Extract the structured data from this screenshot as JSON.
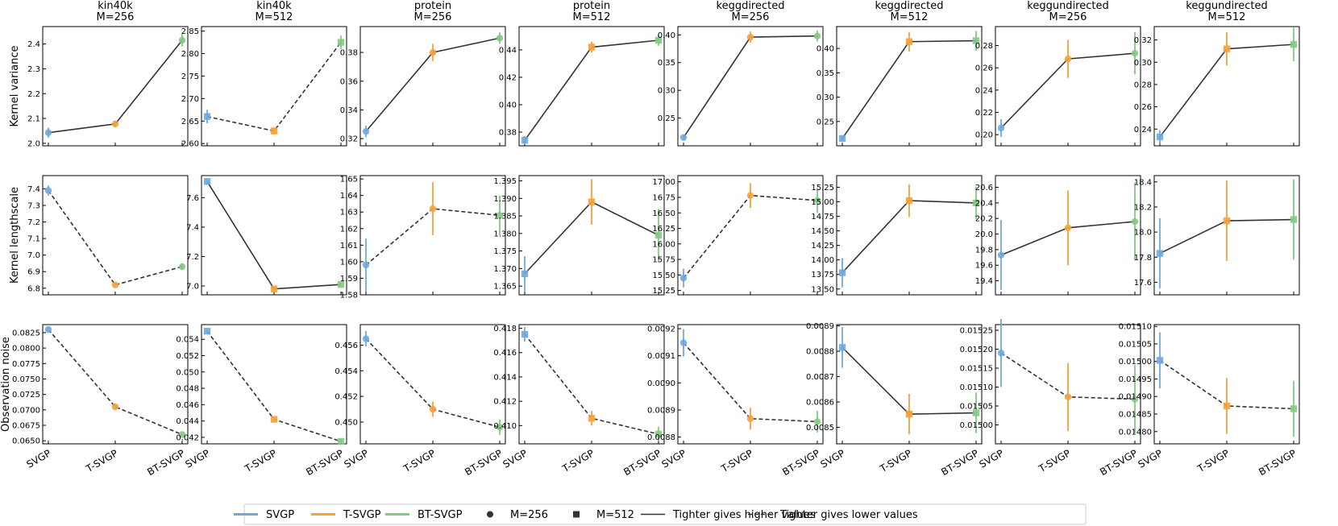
{
  "methods": [
    "SVGP",
    "T-SVGP",
    "BT-SVGP"
  ],
  "row_labels": [
    "Kernel variance",
    "Kernel lengthscale",
    "Observation noise"
  ],
  "colors": {
    "SVGP": "#6fa8dc",
    "T-SVGP": "#f6a13a",
    "BT-SVGP": "#84c984",
    "line": "#333333"
  },
  "legend": {
    "items": [
      {
        "label": "SVGP",
        "kind": "line",
        "color": "#6fa8dc"
      },
      {
        "label": "T-SVGP",
        "kind": "line",
        "color": "#f6a13a"
      },
      {
        "label": "BT-SVGP",
        "kind": "line",
        "color": "#84c984"
      },
      {
        "label": "M=256",
        "kind": "circle",
        "color": "#333333"
      },
      {
        "label": "M=512",
        "kind": "square",
        "color": "#333333"
      },
      {
        "label": "Tighter gives higher values",
        "kind": "solid",
        "color": "#333333"
      },
      {
        "label": "Tighter gives lower values",
        "kind": "dashed",
        "color": "#333333"
      }
    ]
  },
  "chart_data": [
    {
      "type": "line",
      "dataset": "kin40k",
      "m_label": "M=256",
      "marker": "circle",
      "title": "kin40k\nM=256",
      "panels": [
        {
          "row": 0,
          "style": "solid",
          "ylim": [
            1.99,
            2.47
          ],
          "ticks": [
            2.0,
            2.1,
            2.2,
            2.3,
            2.4
          ],
          "tick_labels": [
            "2.0",
            "2.1",
            "2.2",
            "2.3",
            "2.4"
          ],
          "values": [
            2.043,
            2.078,
            2.415
          ],
          "errors": [
            0.02,
            0.012,
            0.025
          ]
        },
        {
          "row": 1,
          "style": "dashed",
          "ylim": [
            6.76,
            7.48
          ],
          "ticks": [
            6.8,
            6.9,
            7.0,
            7.1,
            7.2,
            7.3,
            7.4
          ],
          "tick_labels": [
            "6.8",
            "6.9",
            "7.0",
            "7.1",
            "7.2",
            "7.3",
            "7.4"
          ],
          "values": [
            7.39,
            6.82,
            6.93
          ],
          "errors": [
            0.03,
            0.01,
            0.02
          ]
        },
        {
          "row": 2,
          "style": "dashed",
          "ylim": [
            0.0645,
            0.0838
          ],
          "ticks": [
            0.065,
            0.0675,
            0.07,
            0.0725,
            0.075,
            0.0775,
            0.08,
            0.0825
          ],
          "tick_labels": [
            "0.0650",
            "0.0675",
            "0.0700",
            "0.0725",
            "0.0750",
            "0.0775",
            "0.0800",
            "0.0825"
          ],
          "values": [
            0.083,
            0.0705,
            0.066
          ],
          "errors": [
            0.0002,
            0.0002,
            0.0002
          ]
        }
      ]
    },
    {
      "type": "line",
      "dataset": "kin40k",
      "m_label": "M=512",
      "marker": "square",
      "title": "kin40k\nM=512",
      "panels": [
        {
          "row": 0,
          "style": "dashed",
          "ylim": [
            2.595,
            2.86
          ],
          "ticks": [
            2.6,
            2.65,
            2.7,
            2.75,
            2.8,
            2.85
          ],
          "tick_labels": [
            "2.60",
            "2.65",
            "2.70",
            "2.75",
            "2.80",
            "2.85"
          ],
          "values": [
            2.66,
            2.628,
            2.825
          ],
          "errors": [
            0.015,
            0.008,
            0.015
          ]
        },
        {
          "row": 1,
          "style": "solid",
          "ylim": [
            6.94,
            7.75
          ],
          "ticks": [
            7.0,
            7.2,
            7.4,
            7.6
          ],
          "tick_labels": [
            "7.0",
            "7.2",
            "7.4",
            "7.6"
          ],
          "values": [
            7.71,
            6.98,
            7.01
          ],
          "errors": [
            0.01,
            0.01,
            0.01
          ]
        },
        {
          "row": 2,
          "style": "dashed",
          "ylim": [
            0.0412,
            0.0558
          ],
          "ticks": [
            0.042,
            0.044,
            0.046,
            0.048,
            0.05,
            0.052,
            0.054
          ],
          "tick_labels": [
            "0.042",
            "0.044",
            "0.046",
            "0.048",
            "0.050",
            "0.052",
            "0.054"
          ],
          "values": [
            0.055,
            0.0442,
            0.0415
          ],
          "errors": [
            0.0002,
            0.0002,
            0.0002
          ]
        }
      ]
    },
    {
      "type": "line",
      "dataset": "protein",
      "m_label": "M=256",
      "marker": "circle",
      "title": "protein\nM=256",
      "panels": [
        {
          "row": 0,
          "style": "solid",
          "ylim": [
            0.315,
            0.398
          ],
          "ticks": [
            0.32,
            0.34,
            0.36,
            0.38
          ],
          "tick_labels": [
            "0.32",
            "0.34",
            "0.36",
            "0.38"
          ],
          "values": [
            0.325,
            0.38,
            0.39
          ],
          "errors": [
            0.004,
            0.006,
            0.004
          ]
        },
        {
          "row": 1,
          "style": "dashed",
          "ylim": [
            1.58,
            1.652
          ],
          "ticks": [
            1.58,
            1.59,
            1.6,
            1.61,
            1.62,
            1.63,
            1.64,
            1.65
          ],
          "tick_labels": [
            "1.58",
            "1.59",
            "1.60",
            "1.61",
            "1.62",
            "1.63",
            "1.64",
            "1.65"
          ],
          "values": [
            1.598,
            1.632,
            1.628
          ],
          "errors": [
            0.016,
            0.016,
            0.012
          ]
        },
        {
          "row": 2,
          "style": "dashed",
          "ylim": [
            0.4483,
            0.4576
          ],
          "ticks": [
            0.45,
            0.452,
            0.454,
            0.456
          ],
          "tick_labels": [
            "0.450",
            "0.452",
            "0.454",
            "0.456"
          ],
          "values": [
            0.4565,
            0.451,
            0.4496
          ],
          "errors": [
            0.0006,
            0.0006,
            0.0006
          ]
        }
      ]
    },
    {
      "type": "line",
      "dataset": "protein",
      "m_label": "M=512",
      "marker": "square",
      "title": "protein\nM=512",
      "panels": [
        {
          "row": 0,
          "style": "solid",
          "ylim": [
            0.37,
            0.457
          ],
          "ticks": [
            0.38,
            0.4,
            0.42,
            0.44
          ],
          "tick_labels": [
            "0.38",
            "0.40",
            "0.42",
            "0.44"
          ],
          "values": [
            0.374,
            0.442,
            0.447
          ],
          "errors": [
            0.003,
            0.004,
            0.004
          ]
        },
        {
          "row": 1,
          "style": "solid",
          "ylim": [
            1.3625,
            1.3965
          ],
          "ticks": [
            1.365,
            1.37,
            1.375,
            1.38,
            1.385,
            1.39,
            1.395
          ],
          "tick_labels": [
            "1.365",
            "1.370",
            "1.375",
            "1.380",
            "1.385",
            "1.390",
            "1.395"
          ],
          "values": [
            1.3685,
            1.389,
            1.3795
          ],
          "errors": [
            0.005,
            0.0065,
            0.0075
          ]
        },
        {
          "row": 2,
          "style": "dashed",
          "ylim": [
            0.4085,
            0.4183
          ],
          "ticks": [
            0.41,
            0.412,
            0.414,
            0.416,
            0.418
          ],
          "tick_labels": [
            "0.410",
            "0.412",
            "0.414",
            "0.416",
            "0.418"
          ],
          "values": [
            0.4175,
            0.4106,
            0.4093
          ],
          "errors": [
            0.0006,
            0.0006,
            0.0006
          ]
        }
      ]
    },
    {
      "type": "line",
      "dataset": "keggdirected",
      "m_label": "M=256",
      "marker": "circle",
      "title": "keggdirected\nM=256",
      "panels": [
        {
          "row": 0,
          "style": "solid",
          "ylim": [
            0.2,
            0.415
          ],
          "ticks": [
            0.25,
            0.3,
            0.35,
            0.4
          ],
          "tick_labels": [
            "0.25",
            "0.30",
            "0.35",
            "0.40"
          ],
          "values": [
            0.215,
            0.396,
            0.398
          ],
          "errors": [
            0.004,
            0.01,
            0.01
          ]
        },
        {
          "row": 1,
          "style": "dashed",
          "ylim": [
            15.18,
            17.1
          ],
          "ticks": [
            15.25,
            15.5,
            15.75,
            16.0,
            16.25,
            16.5,
            16.75,
            17.0
          ],
          "tick_labels": [
            "15.25",
            "15.50",
            "15.75",
            "16.00",
            "16.25",
            "16.50",
            "16.75",
            "17.00"
          ],
          "values": [
            15.45,
            16.78,
            16.7
          ],
          "errors": [
            0.15,
            0.2,
            0.2
          ]
        },
        {
          "row": 2,
          "style": "dashed",
          "ylim": [
            0.008775,
            0.009215
          ],
          "ticks": [
            0.0088,
            0.0089,
            0.009,
            0.0091,
            0.0092
          ],
          "tick_labels": [
            "0.0088",
            "0.0089",
            "0.0090",
            "0.0091",
            "0.0092"
          ],
          "values": [
            0.009148,
            0.008868,
            0.008857
          ],
          "errors": [
            5e-05,
            4e-05,
            4e-05
          ]
        }
      ]
    },
    {
      "type": "line",
      "dataset": "keggdirected",
      "m_label": "M=512",
      "marker": "square",
      "title": "keggdirected\nM=512",
      "panels": [
        {
          "row": 0,
          "style": "solid",
          "ylim": [
            0.2,
            0.445
          ],
          "ticks": [
            0.25,
            0.3,
            0.35,
            0.4
          ],
          "tick_labels": [
            "0.25",
            "0.30",
            "0.35",
            "0.40"
          ],
          "values": [
            0.215,
            0.414,
            0.416
          ],
          "errors": [
            0.005,
            0.02,
            0.02
          ]
        },
        {
          "row": 1,
          "style": "solid",
          "ylim": [
            13.4,
            15.45
          ],
          "ticks": [
            13.5,
            13.75,
            14.0,
            14.25,
            14.5,
            14.75,
            15.0,
            15.25
          ],
          "tick_labels": [
            "13.50",
            "13.75",
            "14.00",
            "14.25",
            "14.50",
            "14.75",
            "15.00",
            "15.25"
          ],
          "values": [
            13.78,
            15.02,
            14.98
          ],
          "errors": [
            0.25,
            0.28,
            0.28
          ]
        },
        {
          "row": 2,
          "style": "solid",
          "ylim": [
            0.008435,
            0.008905
          ],
          "ticks": [
            0.0085,
            0.0086,
            0.0087,
            0.0088,
            0.0089
          ],
          "tick_labels": [
            "0.0085",
            "0.0086",
            "0.0087",
            "0.0088",
            "0.0089"
          ],
          "values": [
            0.008815,
            0.008552,
            0.008557
          ],
          "errors": [
            8e-05,
            8e-05,
            8e-05
          ]
        }
      ]
    },
    {
      "type": "line",
      "dataset": "keggundirected",
      "m_label": "M=256",
      "marker": "circle",
      "title": "keggundirected\nM=256",
      "panels": [
        {
          "row": 0,
          "style": "solid",
          "ylim": [
            0.19,
            0.297
          ],
          "ticks": [
            0.2,
            0.22,
            0.24,
            0.26,
            0.28
          ],
          "tick_labels": [
            "0.20",
            "0.22",
            "0.24",
            "0.26",
            "0.28"
          ],
          "values": [
            0.206,
            0.268,
            0.273
          ],
          "errors": [
            0.008,
            0.017,
            0.019
          ]
        },
        {
          "row": 1,
          "style": "solid",
          "ylim": [
            19.22,
            20.75
          ],
          "ticks": [
            19.4,
            19.6,
            19.8,
            20.0,
            20.2,
            20.4,
            20.6
          ],
          "tick_labels": [
            "19.4",
            "19.6",
            "19.8",
            "20.0",
            "20.2",
            "20.4",
            "20.6"
          ],
          "values": [
            19.73,
            20.08,
            20.16
          ],
          "errors": [
            0.45,
            0.48,
            0.5
          ]
        },
        {
          "row": 2,
          "style": "dashed",
          "ylim": [
            0.01495,
            0.015265
          ],
          "ticks": [
            0.015,
            0.01505,
            0.0151,
            0.01515,
            0.0152,
            0.01525
          ],
          "tick_labels": [
            "0.01500",
            "0.01505",
            "0.01510",
            "0.01515",
            "0.01520",
            "0.01525"
          ],
          "values": [
            0.01519,
            0.015074,
            0.015068
          ],
          "errors": [
            9e-05,
            9e-05,
            9e-05
          ]
        }
      ]
    },
    {
      "type": "line",
      "dataset": "keggundirected",
      "m_label": "M=512",
      "marker": "square",
      "title": "keggundirected\nM=512",
      "panels": [
        {
          "row": 0,
          "style": "solid",
          "ylim": [
            0.225,
            0.332
          ],
          "ticks": [
            0.24,
            0.26,
            0.28,
            0.3,
            0.32
          ],
          "tick_labels": [
            "0.24",
            "0.26",
            "0.28",
            "0.30",
            "0.32"
          ],
          "values": [
            0.233,
            0.312,
            0.316
          ],
          "errors": [
            0.006,
            0.015,
            0.015
          ]
        },
        {
          "row": 1,
          "style": "solid",
          "ylim": [
            17.5,
            18.45
          ],
          "ticks": [
            17.6,
            17.8,
            18.0,
            18.2,
            18.4
          ],
          "tick_labels": [
            "17.6",
            "17.8",
            "18.0",
            "18.2",
            "18.4"
          ],
          "values": [
            17.83,
            18.09,
            18.1
          ],
          "errors": [
            0.28,
            0.32,
            0.32
          ]
        },
        {
          "row": 2,
          "style": "dashed",
          "ylim": [
            0.014765,
            0.015105
          ],
          "ticks": [
            0.0148,
            0.01485,
            0.0149,
            0.01495,
            0.015,
            0.01505,
            0.0151
          ],
          "tick_labels": [
            "0.01480",
            "0.01485",
            "0.01490",
            "0.01495",
            "0.01500",
            "0.01505",
            "0.01510"
          ],
          "values": [
            0.015003,
            0.014873,
            0.014865
          ],
          "errors": [
            8e-05,
            8e-05,
            8e-05
          ]
        }
      ]
    }
  ]
}
